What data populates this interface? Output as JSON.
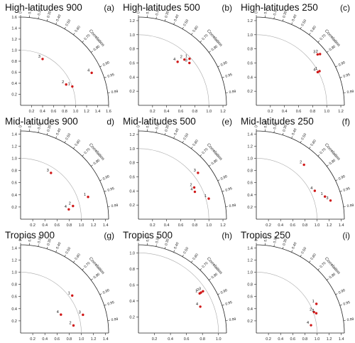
{
  "chart_data": [
    {
      "type": "taylor",
      "title": "High-latitudes 900",
      "letter": "(a)",
      "corr_label": "Correlation",
      "ticks": [
        "0.2",
        "0.4",
        "0.6",
        "0.8",
        "1.0",
        "1.2",
        "1.4",
        "1.6"
      ],
      "max": 1.6,
      "ref_std": 1.0,
      "corr_ticks": [
        "0",
        "0.10",
        "0.20",
        "0.30",
        "0.40",
        "0.50",
        "0.60",
        "0.70",
        "0.80",
        "0.90",
        "0.95",
        "0.99"
      ],
      "points": [
        {
          "label": "1",
          "std": 1.0,
          "corr": 0.94
        },
        {
          "label": "2",
          "std": 0.91,
          "corr": 0.91
        },
        {
          "label": "3",
          "std": 0.93,
          "corr": 0.43
        },
        {
          "label": "4",
          "std": 1.42,
          "corr": 0.91
        }
      ]
    },
    {
      "type": "taylor",
      "title": "High-latitudes 500",
      "letter": "(b)",
      "corr_label": "Correlation",
      "ticks": [
        "0.2",
        "0.4",
        "0.6",
        "0.8",
        "1.0",
        "1.2"
      ],
      "max": 1.25,
      "ref_std": 1.0,
      "corr_ticks": [
        "0",
        "0.10",
        "0.20",
        "0.30",
        "0.40",
        "0.50",
        "0.60",
        "0.70",
        "0.80",
        "0.90",
        "0.95",
        "0.99"
      ],
      "points": [
        {
          "label": "1",
          "std": 0.98,
          "corr": 0.74
        },
        {
          "label": "2",
          "std": 0.92,
          "corr": 0.71
        },
        {
          "label": "3",
          "std": 0.94,
          "corr": 0.77
        },
        {
          "label": "4",
          "std": 0.83,
          "corr": 0.67
        }
      ]
    },
    {
      "type": "taylor",
      "title": "High-latitudes 250",
      "letter": "(c)",
      "corr_label": "Correlation",
      "ticks": [
        "0.2",
        "0.4",
        "0.6",
        "0.8",
        "1.0",
        "1.2"
      ],
      "max": 1.25,
      "ref_std": 1.0,
      "corr_ticks": [
        "0",
        "0.10",
        "0.20",
        "0.30",
        "0.40",
        "0.50",
        "0.60",
        "0.70",
        "0.80",
        "0.90",
        "0.95",
        "0.99"
      ],
      "points": [
        {
          "label": "1",
          "std": 1.02,
          "corr": 0.88
        },
        {
          "label": "2",
          "std": 1.16,
          "corr": 0.78
        },
        {
          "label": "3",
          "std": 1.13,
          "corr": 0.77
        },
        {
          "label": "4",
          "std": 0.99,
          "corr": 0.88
        }
      ]
    },
    {
      "type": "taylor",
      "title": "Mid-latitudes 900",
      "letter": "d)",
      "corr_label": "Correlation",
      "ticks": [
        "0.2",
        "0.4",
        "0.6",
        "0.8",
        "1.0",
        "1.2",
        "1.4"
      ],
      "max": 1.45,
      "ref_std": 1.0,
      "corr_ticks": [
        "0",
        "0.10",
        "0.20",
        "0.30",
        "0.40",
        "0.50",
        "0.60",
        "0.70",
        "0.80",
        "0.90",
        "0.95",
        "0.99"
      ],
      "points": [
        {
          "label": "1",
          "std": 1.17,
          "corr": 0.95
        },
        {
          "label": "2",
          "std": 0.89,
          "corr": 0.97
        },
        {
          "label": "3",
          "std": 0.91,
          "corr": 0.55
        },
        {
          "label": "4",
          "std": 0.81,
          "corr": 0.98
        }
      ]
    },
    {
      "type": "taylor",
      "title": "Mid-latitudes 500",
      "letter": "(e)",
      "corr_label": "Correlation",
      "ticks": [
        "0.2",
        "0.4",
        "0.6",
        "0.8",
        "1.0",
        "1.2"
      ],
      "max": 1.25,
      "ref_std": 1.0,
      "corr_ticks": [
        "0",
        "0.10",
        "0.20",
        "0.30",
        "0.40",
        "0.50",
        "0.60",
        "0.70",
        "0.80",
        "0.90",
        "0.95",
        "0.99"
      ],
      "points": [
        {
          "label": "1",
          "std": 1.04,
          "corr": 0.96
        },
        {
          "label": "2",
          "std": 0.91,
          "corr": 0.87
        },
        {
          "label": "3",
          "std": 1.07,
          "corr": 0.79
        },
        {
          "label": "4",
          "std": 0.89,
          "corr": 0.9
        }
      ]
    },
    {
      "type": "taylor",
      "title": "Mid-latitudes 250",
      "letter": "(f)",
      "corr_label": "Correlation",
      "ticks": [
        "0.2",
        "0.4",
        "0.6",
        "0.8",
        "1.0",
        "1.2",
        "1.4"
      ],
      "max": 1.45,
      "ref_std": 1.0,
      "corr_ticks": [
        "0",
        "0.10",
        "0.20",
        "0.30",
        "0.40",
        "0.50",
        "0.60",
        "0.70",
        "0.80",
        "0.90",
        "0.95",
        "0.99"
      ],
      "points": [
        {
          "label": "1",
          "std": 1.19,
          "corr": 0.95
        },
        {
          "label": "2",
          "std": 1.19,
          "corr": 0.66
        },
        {
          "label": "3",
          "std": 1.26,
          "corr": 0.97
        },
        {
          "label": "4",
          "std": 1.07,
          "corr": 0.9
        }
      ]
    },
    {
      "type": "taylor",
      "title": "Tropics 900",
      "letter": "(g)",
      "corr_label": "Correlation",
      "ticks": [
        "0.2",
        "0.4",
        "0.6",
        "0.8",
        "1.0",
        "1.2",
        "1.4"
      ],
      "max": 1.45,
      "ref_std": 1.0,
      "corr_ticks": [
        "0",
        "0.10",
        "0.20",
        "0.30",
        "0.40",
        "0.50",
        "0.60",
        "0.70",
        "0.80",
        "0.90",
        "0.95",
        "0.99"
      ],
      "points": [
        {
          "label": "1",
          "std": 1.05,
          "corr": 0.81
        },
        {
          "label": "2",
          "std": 0.88,
          "corr": 0.99
        },
        {
          "label": "3",
          "std": 1.07,
          "corr": 0.96
        },
        {
          "label": "4",
          "std": 0.73,
          "corr": 0.91
        }
      ]
    },
    {
      "type": "taylor",
      "title": "Tropics 500",
      "letter": "(h)",
      "corr_label": "Correlation",
      "ticks": [
        "0.2",
        "0.4",
        "0.6",
        "0.8",
        "1.0"
      ],
      "max": 1.1,
      "ref_std": 1.0,
      "corr_ticks": [
        "0",
        "0.10",
        "0.20",
        "0.30",
        "0.40",
        "0.50",
        "0.60",
        "0.70",
        "0.80",
        "0.90",
        "0.95",
        "0.99"
      ],
      "points": [
        {
          "label": "1",
          "std": 0.91,
          "corr": 0.84
        },
        {
          "label": "2",
          "std": 0.93,
          "corr": 0.84
        },
        {
          "label": "3",
          "std": 0.96,
          "corr": 0.84
        },
        {
          "label": "4",
          "std": 0.84,
          "corr": 0.92
        }
      ]
    },
    {
      "type": "taylor",
      "title": "Tropics 250",
      "letter": "(i)",
      "corr_label": "Correlation",
      "ticks": [
        "0.2",
        "0.4",
        "0.6",
        "0.8",
        "1.0",
        "1.2",
        "1.4"
      ],
      "max": 1.45,
      "ref_std": 1.0,
      "corr_ticks": [
        "0",
        "0.10",
        "0.20",
        "0.30",
        "0.40",
        "0.50",
        "0.60",
        "0.70",
        "0.80",
        "0.90",
        "0.95",
        "0.99"
      ],
      "points": [
        {
          "label": "1",
          "std": 1.1,
          "corr": 0.9
        },
        {
          "label": "2",
          "std": 1.01,
          "corr": 0.94
        },
        {
          "label": "3",
          "std": 1.04,
          "corr": 0.95
        },
        {
          "label": "4",
          "std": 0.91,
          "corr": 0.99
        }
      ]
    }
  ]
}
